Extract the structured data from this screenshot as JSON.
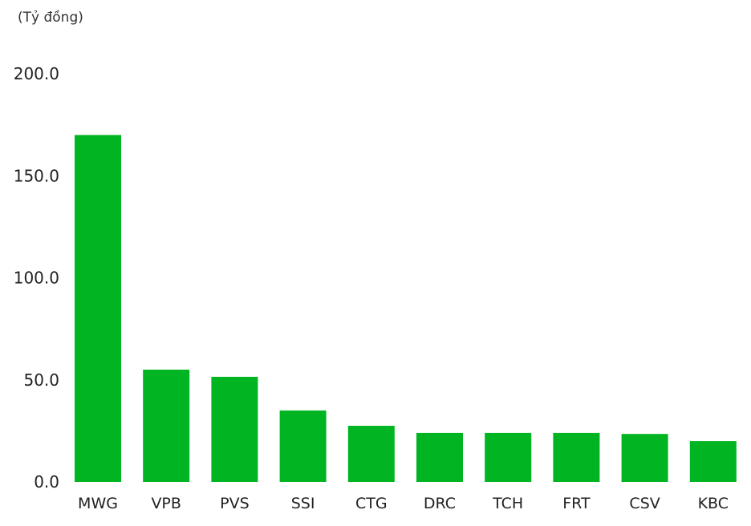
{
  "chart_data": {
    "type": "bar",
    "unit_label": "(Tỷ đồng)",
    "categories": [
      "MWG",
      "VPB",
      "PVS",
      "SSI",
      "CTG",
      "DRC",
      "TCH",
      "FRT",
      "CSV",
      "KBC"
    ],
    "values": [
      170.0,
      55.0,
      51.5,
      35.0,
      27.5,
      24.0,
      24.0,
      24.0,
      23.5,
      20.0
    ],
    "ylim": [
      0,
      200
    ],
    "y_ticks": [
      "0.0",
      "50.0",
      "100.0",
      "150.0",
      "200.0"
    ],
    "bar_color": "#00b521",
    "grid": false,
    "legend": false
  }
}
